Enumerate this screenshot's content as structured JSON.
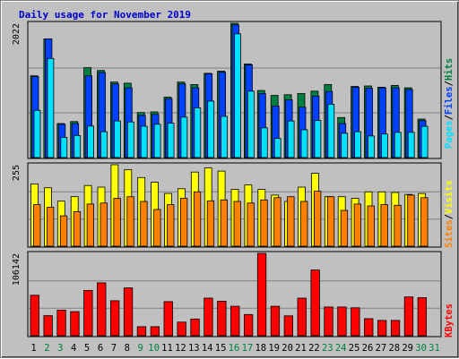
{
  "title": "Daily usage for November 2019",
  "colors": {
    "background": "#c0c0c0",
    "hits": "#008040",
    "files": "#0040ff",
    "pages": "#00e0ff",
    "visits": "#ffff00",
    "sites": "#ff8000",
    "kbytes": "#ff0000",
    "weekend_day": "#008040",
    "weekday_day": "#000000"
  },
  "chart_data": [
    {
      "type": "bar",
      "categories": [
        "1",
        "2",
        "3",
        "4",
        "5",
        "6",
        "7",
        "8",
        "9",
        "10",
        "11",
        "12",
        "13",
        "14",
        "15",
        "16",
        "17",
        "18",
        "19",
        "20",
        "21",
        "22",
        "23",
        "24",
        "25",
        "26",
        "27",
        "28",
        "29",
        "30",
        "31"
      ],
      "max_label": "2022",
      "legend": [
        "Pages",
        "Files",
        "Hits"
      ],
      "ylim": [
        0,
        2022
      ],
      "series": [
        {
          "name": "Hits",
          "values": [
            1231,
            1788,
            512,
            542,
            1354,
            1312,
            1137,
            1120,
            678,
            688,
            910,
            1137,
            1100,
            1268,
            1301,
            2022,
            1410,
            1009,
            936,
            946,
            964,
            1000,
            1100,
            602,
            1070,
            1078,
            1060,
            1087,
            1050,
            579,
            null
          ]
        },
        {
          "name": "Files",
          "values": [
            1218,
            1788,
            502,
            512,
            1231,
            1280,
            1110,
            1050,
            636,
            650,
            886,
            1110,
            1050,
            1260,
            1284,
            1998,
            1396,
            964,
            776,
            870,
            757,
            926,
            995,
            513,
            1060,
            1045,
            1050,
            1050,
            1025,
            555,
            null
          ]
        },
        {
          "name": "Pages",
          "values": [
            712,
            1492,
            305,
            333,
            475,
            389,
            551,
            537,
            472,
            502,
            518,
            609,
            749,
            850,
            621,
            1863,
            1000,
            448,
            288,
            552,
            419,
            560,
            803,
            367,
            389,
            325,
            354,
            380,
            380,
            470,
            null
          ]
        }
      ]
    },
    {
      "type": "bar",
      "categories": [
        "1",
        "2",
        "3",
        "4",
        "5",
        "6",
        "7",
        "8",
        "9",
        "10",
        "11",
        "12",
        "13",
        "14",
        "15",
        "16",
        "17",
        "18",
        "19",
        "20",
        "21",
        "22",
        "23",
        "24",
        "25",
        "26",
        "27",
        "28",
        "29",
        "30",
        "31"
      ],
      "max_label": "255",
      "legend": [
        "Sites",
        "Visits"
      ],
      "ylim": [
        0,
        255
      ],
      "series": [
        {
          "name": "Visits",
          "values": [
            195,
            183,
            141,
            155,
            190,
            185,
            255,
            240,
            215,
            200,
            165,
            180,
            232,
            245,
            235,
            178,
            192,
            178,
            160,
            140,
            185,
            228,
            155,
            155,
            150,
            170,
            170,
            168,
            162,
            165,
            null
          ]
        },
        {
          "name": "Sites",
          "values": [
            130,
            122,
            95,
            108,
            132,
            135,
            150,
            155,
            140,
            115,
            130,
            150,
            170,
            142,
            145,
            140,
            135,
            145,
            152,
            155,
            140,
            172,
            155,
            112,
            132,
            126,
            130,
            128,
            160,
            152,
            null
          ]
        }
      ]
    },
    {
      "type": "bar",
      "categories": [
        "1",
        "2",
        "3",
        "4",
        "5",
        "6",
        "7",
        "8",
        "9",
        "10",
        "11",
        "12",
        "13",
        "14",
        "15",
        "16",
        "17",
        "18",
        "19",
        "20",
        "21",
        "22",
        "23",
        "24",
        "25",
        "26",
        "27",
        "28",
        "29",
        "30",
        "31"
      ],
      "max_label": "106142",
      "legend": [
        "KBytes"
      ],
      "ylim": [
        0,
        106142
      ],
      "series": [
        {
          "name": "KBytes",
          "values": [
            52200,
            25800,
            33000,
            31000,
            58400,
            68200,
            45100,
            61600,
            11600,
            11600,
            44000,
            17500,
            21600,
            48500,
            44500,
            38000,
            27300,
            106142,
            38000,
            25600,
            48500,
            84700,
            37000,
            37000,
            36000,
            22000,
            19700,
            19700,
            50000,
            49000,
            null
          ]
        }
      ]
    }
  ]
}
